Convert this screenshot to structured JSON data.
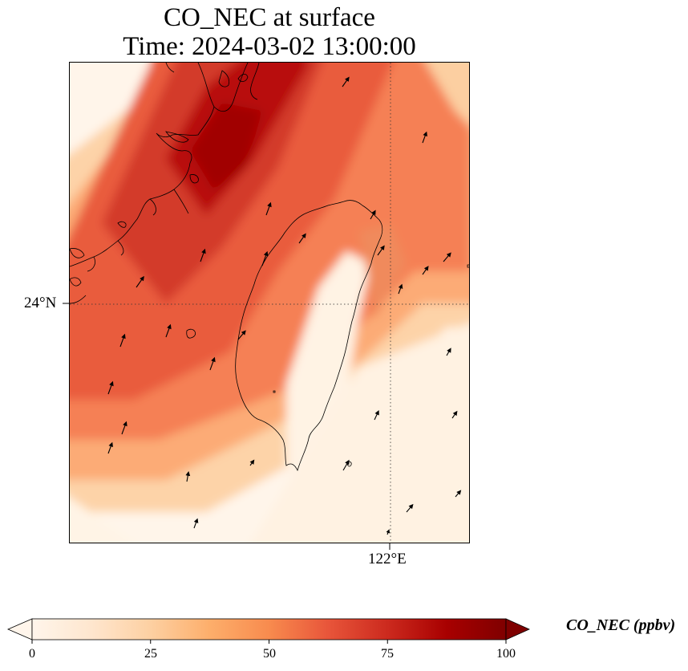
{
  "title": {
    "line1": "CO_NEC at surface",
    "line2": "Time: 2024-03-02 13:00:00"
  },
  "gridlines": {
    "lat_label": "24°N",
    "lon_label": "122°E",
    "style": "dotted"
  },
  "colorbar": {
    "label": "CO_NEC (ppbv)",
    "ticks": [
      "0",
      "25",
      "50",
      "75",
      "100"
    ],
    "range": [
      0,
      100
    ],
    "extend": "both",
    "colormap": [
      "#fff5eb",
      "#fee6ce",
      "#fdd0a2",
      "#fdae6b",
      "#fd8d3c",
      "#f16913",
      "#d94801",
      "#a63603",
      "#7f2704"
    ],
    "colormap_name": "OrRd-like"
  },
  "map": {
    "variable": "CO_NEC",
    "level": "surface",
    "high_color": "#a80000",
    "low_color": "#fff5e8",
    "coast_color": "#000000",
    "wind_vector_color": "#000000"
  }
}
